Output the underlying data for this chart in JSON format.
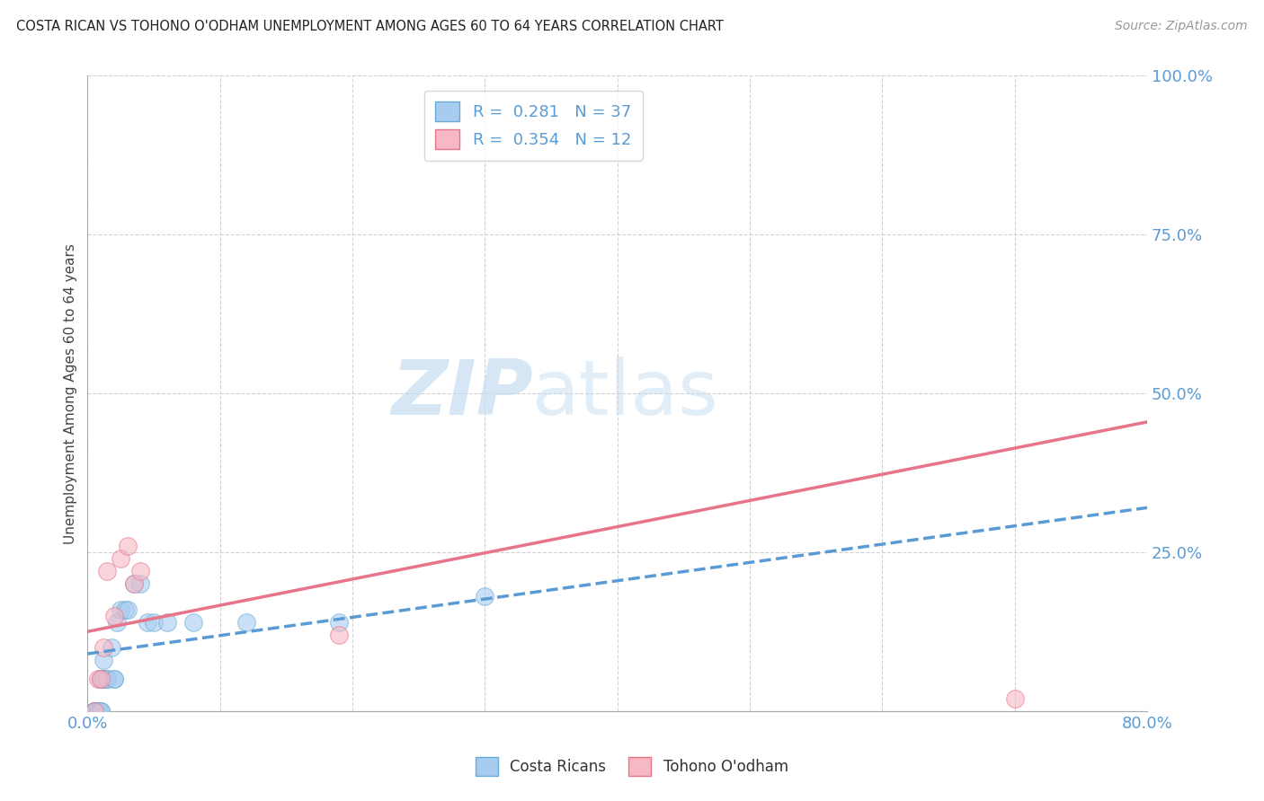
{
  "title": "COSTA RICAN VS TOHONO O'ODHAM UNEMPLOYMENT AMONG AGES 60 TO 64 YEARS CORRELATION CHART",
  "source": "Source: ZipAtlas.com",
  "ylabel": "Unemployment Among Ages 60 to 64 years",
  "xmin": 0.0,
  "xmax": 0.8,
  "ymin": 0.0,
  "ymax": 1.0,
  "xticks": [
    0.0,
    0.1,
    0.2,
    0.3,
    0.4,
    0.5,
    0.6,
    0.7,
    0.8
  ],
  "yticks": [
    0.0,
    0.25,
    0.5,
    0.75,
    1.0
  ],
  "xtick_labels": [
    "0.0%",
    "",
    "",
    "",
    "",
    "",
    "",
    "",
    "80.0%"
  ],
  "ytick_labels": [
    "",
    "25.0%",
    "50.0%",
    "75.0%",
    "100.0%"
  ],
  "blue_scatter_x": [
    0.005,
    0.005,
    0.005,
    0.005,
    0.005,
    0.005,
    0.008,
    0.008,
    0.008,
    0.008,
    0.008,
    0.01,
    0.01,
    0.01,
    0.01,
    0.01,
    0.012,
    0.012,
    0.012,
    0.015,
    0.015,
    0.018,
    0.02,
    0.02,
    0.022,
    0.025,
    0.028,
    0.03,
    0.035,
    0.04,
    0.045,
    0.05,
    0.06,
    0.08,
    0.12,
    0.19,
    0.3
  ],
  "blue_scatter_y": [
    0.0,
    0.0,
    0.0,
    0.0,
    0.0,
    0.0,
    0.0,
    0.0,
    0.0,
    0.0,
    0.0,
    0.0,
    0.0,
    0.0,
    0.05,
    0.05,
    0.05,
    0.05,
    0.08,
    0.05,
    0.05,
    0.1,
    0.05,
    0.05,
    0.14,
    0.16,
    0.16,
    0.16,
    0.2,
    0.2,
    0.14,
    0.14,
    0.14,
    0.14,
    0.14,
    0.14,
    0.18
  ],
  "pink_scatter_x": [
    0.005,
    0.008,
    0.01,
    0.012,
    0.015,
    0.02,
    0.025,
    0.03,
    0.035,
    0.04,
    0.19,
    0.7
  ],
  "pink_scatter_y": [
    0.0,
    0.05,
    0.05,
    0.1,
    0.22,
    0.15,
    0.24,
    0.26,
    0.2,
    0.22,
    0.12,
    0.02
  ],
  "blue_R": "0.281",
  "blue_N": "37",
  "pink_R": "0.354",
  "pink_N": "12",
  "blue_line_x": [
    0.0,
    0.8
  ],
  "blue_line_y": [
    0.09,
    0.32
  ],
  "pink_line_x": [
    0.0,
    0.8
  ],
  "pink_line_y": [
    0.125,
    0.455
  ],
  "blue_scatter_color": "#A8CCF0",
  "blue_scatter_edge": "#6AAAD4",
  "pink_scatter_color": "#F5B8C4",
  "pink_scatter_edge": "#E8748A",
  "blue_line_color": "#5B9BD5",
  "pink_line_color": "#E8748A",
  "watermark_zip": "ZIP",
  "watermark_atlas": "atlas",
  "background_color": "#FFFFFF",
  "grid_color": "#CCCCCC"
}
